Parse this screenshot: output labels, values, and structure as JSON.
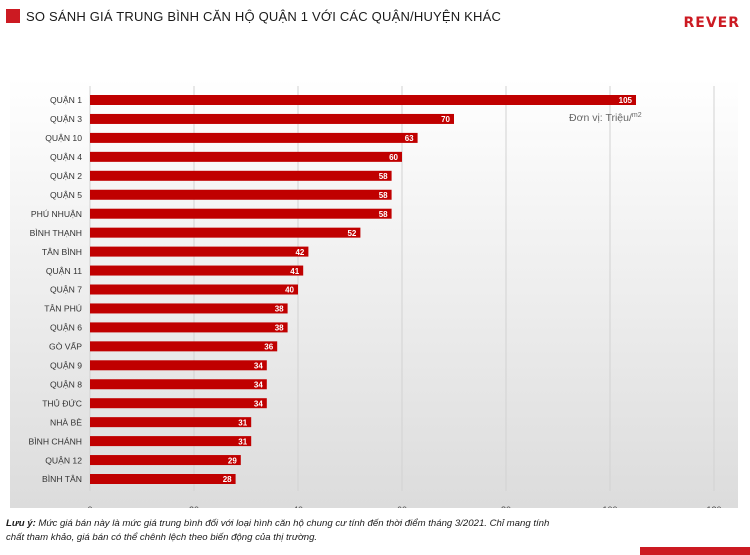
{
  "header": {
    "title": "SO SÁNH GIÁ TRUNG BÌNH CĂN HỘ QUẬN 1 VỚI CÁC QUẬN/HUYỆN KHÁC",
    "logo": "REVER"
  },
  "colors": {
    "bar": "#c00000",
    "accent": "#cc1a22"
  },
  "chart_data": {
    "type": "bar",
    "orientation": "horizontal",
    "title": "SO SÁNH GIÁ TRUNG BÌNH CĂN HỘ QUẬN 1 VỚI CÁC QUẬN/HUYỆN KHÁC",
    "unit_label": "Đơn vị: Triệu/",
    "unit_sup": "m2",
    "categories": [
      "QUẬN 1",
      "QUẬN 3",
      "QUẬN 10",
      "QUẬN 4",
      "QUẬN 2",
      "QUẬN 5",
      "PHÚ NHUẬN",
      "BÌNH THẠNH",
      "TÂN BÌNH",
      "QUẬN 11",
      "QUẬN 7",
      "TÂN PHÚ",
      "QUẬN 6",
      "GÒ VẤP",
      "QUẬN 9",
      "QUẬN 8",
      "THỦ ĐỨC",
      "NHÀ BÈ",
      "BÌNH CHÁNH",
      "QUẬN 12",
      "BÌNH TÂN"
    ],
    "values": [
      105,
      70,
      63,
      60,
      58,
      58,
      58,
      52,
      42,
      41,
      40,
      38,
      38,
      36,
      34,
      34,
      34,
      31,
      31,
      29,
      28
    ],
    "xlim": [
      0,
      120
    ],
    "xticks": [
      0,
      20,
      40,
      60,
      80,
      100,
      120
    ],
    "grid": true,
    "data_labels": true
  },
  "note": {
    "label": "Lưu ý:",
    "text": " Mức giá bán này là mức giá trung bình đối với loại hình căn hộ chung cư tính đến thời điểm tháng 3/2021. Chỉ mang tính chất tham khảo, giá bán có thể chênh lệch theo biến động của thị trường."
  }
}
